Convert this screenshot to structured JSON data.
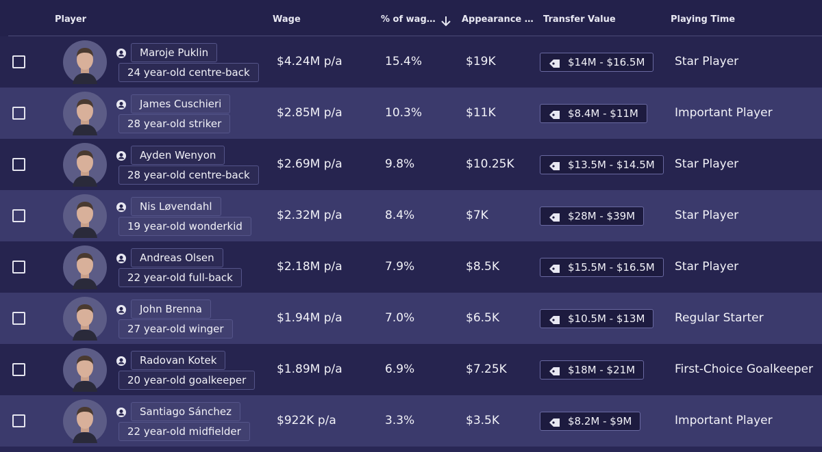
{
  "header": {
    "columns": [
      "Player",
      "Wage",
      "% of wag…",
      "Appearance …",
      "Transfer Value",
      "Playing Time"
    ]
  },
  "rows": [
    {
      "name": "Maroje Puklin",
      "description": "24 year-old centre-back",
      "wage": "$4.24M p/a",
      "wage_share": "15.4%",
      "appearance_fee": "$19K",
      "transfer_value": "$14M - $16.5M",
      "playing_time": "Star Player"
    },
    {
      "name": "James Cuschieri",
      "description": "28 year-old striker",
      "wage": "$2.85M p/a",
      "wage_share": "10.3%",
      "appearance_fee": "$11K",
      "transfer_value": "$8.4M - $11M",
      "playing_time": "Important Player"
    },
    {
      "name": "Ayden Wenyon",
      "description": "28 year-old centre-back",
      "wage": "$2.69M p/a",
      "wage_share": "9.8%",
      "appearance_fee": "$10.25K",
      "transfer_value": "$13.5M - $14.5M",
      "playing_time": "Star Player"
    },
    {
      "name": "Nis Løvendahl",
      "description": "19 year-old wonderkid",
      "wage": "$2.32M p/a",
      "wage_share": "8.4%",
      "appearance_fee": "$7K",
      "transfer_value": "$28M - $39M",
      "playing_time": "Star Player"
    },
    {
      "name": "Andreas Olsen",
      "description": "22 year-old full-back",
      "wage": "$2.18M p/a",
      "wage_share": "7.9%",
      "appearance_fee": "$8.5K",
      "transfer_value": "$15.5M - $16.5M",
      "playing_time": "Star Player"
    },
    {
      "name": "John Brenna",
      "description": "27 year-old winger",
      "wage": "$1.94M p/a",
      "wage_share": "7.0%",
      "appearance_fee": "$6.5K",
      "transfer_value": "$10.5M - $13M",
      "playing_time": "Regular Starter"
    },
    {
      "name": "Radovan Kotek",
      "description": "20 year-old goalkeeper",
      "wage": "$1.89M p/a",
      "wage_share": "6.9%",
      "appearance_fee": "$7.25K",
      "transfer_value": "$18M - $21M",
      "playing_time": "First-Choice Goalkeeper"
    },
    {
      "name": "Santiago Sánchez",
      "description": "22 year-old midfielder",
      "wage": "$922K p/a",
      "wage_share": "3.3%",
      "appearance_fee": "$3.5K",
      "transfer_value": "$8.2M - $9M",
      "playing_time": "Important Player"
    }
  ]
}
